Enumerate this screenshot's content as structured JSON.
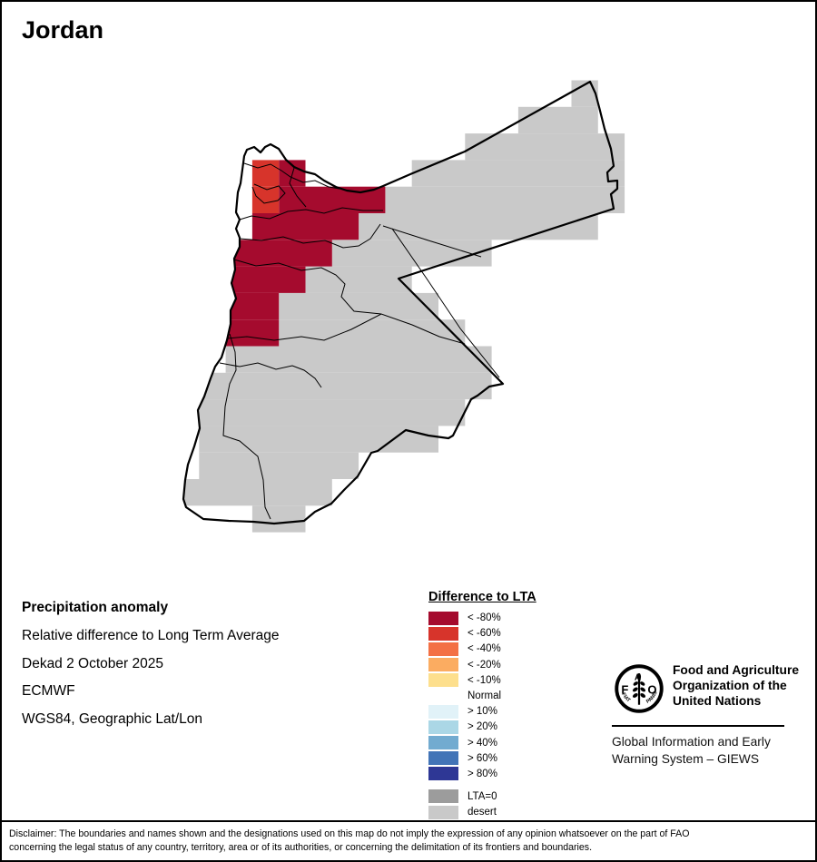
{
  "title": "Jordan",
  "info": {
    "lines": [
      "Precipitation anomaly",
      "Relative difference to Long Term Average",
      "Dekad 2 October 2025",
      "ECMWF",
      "WGS84, Geographic Lat/Lon"
    ]
  },
  "legend": {
    "title": "Difference to LTA",
    "items": [
      {
        "label": "< -80%",
        "color": "#A50B2E"
      },
      {
        "label": "< -60%",
        "color": "#D7342B"
      },
      {
        "label": "< -40%",
        "color": "#F37044"
      },
      {
        "label": "< -20%",
        "color": "#FBAC61"
      },
      {
        "label": "< -10%",
        "color": "#FDDF8D"
      },
      {
        "label": "Normal",
        "color": null
      },
      {
        "label": "> 10%",
        "color": "#E1F2F8"
      },
      {
        "label": "> 20%",
        "color": "#ABD7E6"
      },
      {
        "label": "> 40%",
        "color": "#72ABD0"
      },
      {
        "label": "> 60%",
        "color": "#4274B7"
      },
      {
        "label": "> 80%",
        "color": "#2E3795"
      }
    ],
    "extra_items": [
      {
        "label": "LTA=0",
        "color": "#9C9C9C"
      },
      {
        "label": "desert",
        "color": "#C9C9C9"
      }
    ]
  },
  "map": {
    "cells": {
      "desert_color": "#C9C9C9",
      "lt_m80_color": "#A50B2E",
      "lt_m60_color": "#D7342B",
      "desert_rows": [
        [
          15,
          15
        ],
        [
          13,
          15
        ],
        [
          11,
          16
        ],
        [
          9,
          16
        ],
        [
          8,
          16
        ],
        [
          7,
          15
        ],
        [
          6,
          11
        ],
        [
          5,
          8
        ],
        [
          4,
          9
        ],
        [
          4,
          10
        ],
        [
          2,
          11
        ],
        [
          1,
          11
        ],
        [
          1,
          10
        ],
        [
          1,
          9
        ],
        [
          1,
          6
        ],
        [
          0,
          5
        ],
        [
          3,
          4
        ]
      ],
      "lt_m80_rows": {
        "3": [
          4,
          4
        ],
        "4": [
          4,
          7
        ],
        "5": [
          3,
          6
        ],
        "6": [
          2,
          5
        ],
        "7": [
          2,
          4
        ],
        "8": [
          2,
          3
        ],
        "9": [
          2,
          3
        ]
      },
      "lt_m60_rows": {
        "3": [
          3,
          3
        ],
        "4": [
          3,
          3
        ]
      }
    }
  },
  "fao": {
    "org_lines": [
      "Food and Agriculture",
      "Organization of the",
      "United Nations"
    ],
    "giews_lines": [
      "Global Information and Early",
      "Warning System – GIEWS"
    ],
    "logo_letters": {
      "f": "F",
      "a": "A",
      "o": "O",
      "motto_left": "FIAT",
      "motto_right": "PANIS"
    }
  },
  "disclaimer": {
    "lines": [
      "Disclaimer: The boundaries and names shown and the designations used on this map do not imply the expression of any opinion whatsoever on the part of FAO",
      "concerning the legal status of any country, territory, area or of its authorities, or concerning the delimitation of its frontiers and boundaries."
    ]
  }
}
